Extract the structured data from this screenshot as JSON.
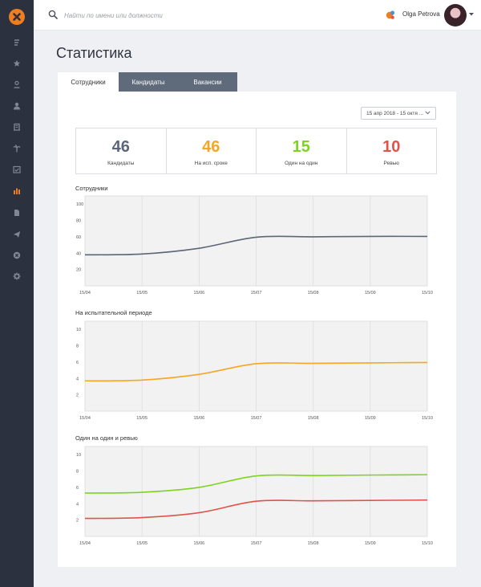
{
  "search": {
    "placeholder": "Найти по имени или должности"
  },
  "user": {
    "name": "Olga Petrova"
  },
  "page": {
    "title": "Статистика"
  },
  "tabs": [
    {
      "label": "Сотрудники",
      "active": true
    },
    {
      "label": "Кандидаты",
      "active": false
    },
    {
      "label": "Вакансии",
      "active": false
    }
  ],
  "date_range": {
    "value": "15 апр 2018 - 15 октя ..."
  },
  "stats": [
    {
      "value": "46",
      "label": "Кандидаты",
      "color": "#5c6677"
    },
    {
      "value": "46",
      "label": "На исп. сроке",
      "color": "#f5a623"
    },
    {
      "value": "15",
      "label": "Один на один",
      "color": "#7ed321"
    },
    {
      "value": "10",
      "label": "Ревью",
      "color": "#e0534a"
    }
  ],
  "sidebar": {
    "icons": [
      "logo-icon",
      "feed-icon",
      "star-icon",
      "user-circle-icon",
      "user-icon",
      "building-icon",
      "palm-icon",
      "chart-check-icon",
      "bar-chart-icon",
      "document-icon",
      "send-icon",
      "close-circle-icon",
      "gear-icon"
    ],
    "active": "bar-chart-icon",
    "accent": "#f07e1f"
  },
  "chart_data": [
    {
      "type": "line",
      "title": "Сотрудники",
      "x": [
        "15/04",
        "15/05",
        "15/06",
        "15/07",
        "15/08",
        "15/09",
        "15/10"
      ],
      "yticks": [
        "20",
        "40",
        "60",
        "80",
        "100"
      ],
      "ylim": [
        0,
        110
      ],
      "grid": "vertical",
      "series": [
        {
          "color": "#5c6677",
          "values": [
            38,
            39,
            46,
            59.5,
            60,
            60.5,
            60.5
          ]
        }
      ]
    },
    {
      "type": "line",
      "title": "На испытательной периоде",
      "x": [
        "15/04",
        "15/05",
        "15/06",
        "15/07",
        "15/08",
        "15/09",
        "15/10"
      ],
      "yticks": [
        "2",
        "4",
        "6",
        "8",
        "10"
      ],
      "ylim": [
        0,
        11
      ],
      "grid": "vertical",
      "series": [
        {
          "color": "#f5a623",
          "values": [
            3.7,
            3.8,
            4.5,
            5.8,
            5.85,
            5.9,
            5.95
          ]
        }
      ]
    },
    {
      "type": "line",
      "title": "Один на один и ревью",
      "x": [
        "15/04",
        "15/05",
        "15/06",
        "15/07",
        "15/08",
        "15/09",
        "15/10"
      ],
      "yticks": [
        "2",
        "4",
        "6",
        "8",
        "10"
      ],
      "ylim": [
        0,
        11
      ],
      "grid": "vertical",
      "series": [
        {
          "color": "#7ed321",
          "values": [
            5.3,
            5.4,
            6.0,
            7.4,
            7.45,
            7.5,
            7.55
          ]
        },
        {
          "color": "#e0534a",
          "values": [
            2.2,
            2.3,
            2.9,
            4.3,
            4.35,
            4.4,
            4.45
          ]
        }
      ]
    }
  ]
}
